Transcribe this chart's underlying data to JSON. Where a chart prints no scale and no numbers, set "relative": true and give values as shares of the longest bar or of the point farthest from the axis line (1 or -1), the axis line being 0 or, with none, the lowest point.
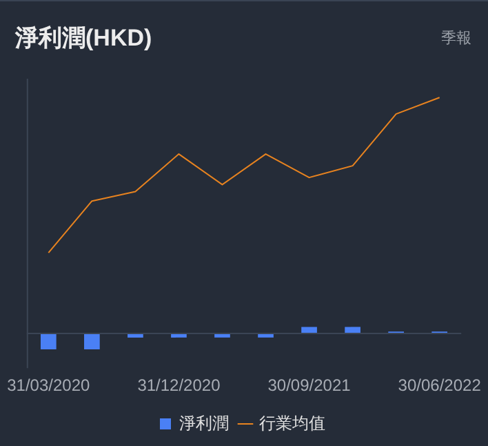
{
  "chart_data": {
    "type": "bar",
    "title": "淨利潤(HKD)",
    "subtitle": "季報",
    "relative": true,
    "categories": [
      "31/03/2020",
      null,
      null,
      "31/12/2020",
      null,
      null,
      "30/09/2021",
      null,
      null,
      "30/06/2022"
    ],
    "series": [
      {
        "name": "淨利潤",
        "color": "#4a80f5",
        "values": [
          -0.07,
          -0.07,
          -0.02,
          -0.02,
          -0.02,
          -0.02,
          0.025,
          0.025,
          0.005,
          0.005
        ]
      },
      {
        "name": "行業均值",
        "type": "line",
        "color": "#e8831f",
        "values": [
          0.34,
          0.56,
          0.6,
          0.76,
          0.63,
          0.76,
          0.66,
          0.71,
          0.93,
          1.0
        ]
      }
    ],
    "legend": "bottom",
    "marker": "none",
    "grid": false,
    "tick_labels": "x"
  }
}
